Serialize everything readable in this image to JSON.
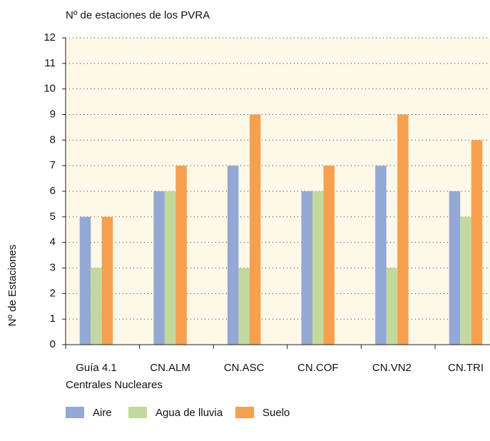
{
  "chart_data": {
    "type": "bar",
    "title": "Nº de estaciones de los PVRA",
    "y_label": "Nº de Estaciones",
    "x_label": "Centrales Nucleares",
    "categories": [
      "Guía 4.1",
      "CN.ALM",
      "CN.ASC",
      "CN.COF",
      "CN.VN2",
      "CN.TRI"
    ],
    "series": [
      {
        "name": "Aire",
        "color": "#94a8d4",
        "values": [
          5,
          6,
          7,
          6,
          7,
          6
        ]
      },
      {
        "name": "Agua de lluvia",
        "color": "#c2d99e",
        "values": [
          3,
          6,
          3,
          6,
          3,
          5
        ]
      },
      {
        "name": "Suelo",
        "color": "#f5a04f",
        "values": [
          5,
          7,
          9,
          7,
          9,
          8
        ]
      }
    ],
    "ylim": [
      0,
      12
    ],
    "yticks": [
      0,
      1,
      2,
      3,
      4,
      5,
      6,
      7,
      8,
      9,
      10,
      11,
      12
    ],
    "grid": true
  }
}
